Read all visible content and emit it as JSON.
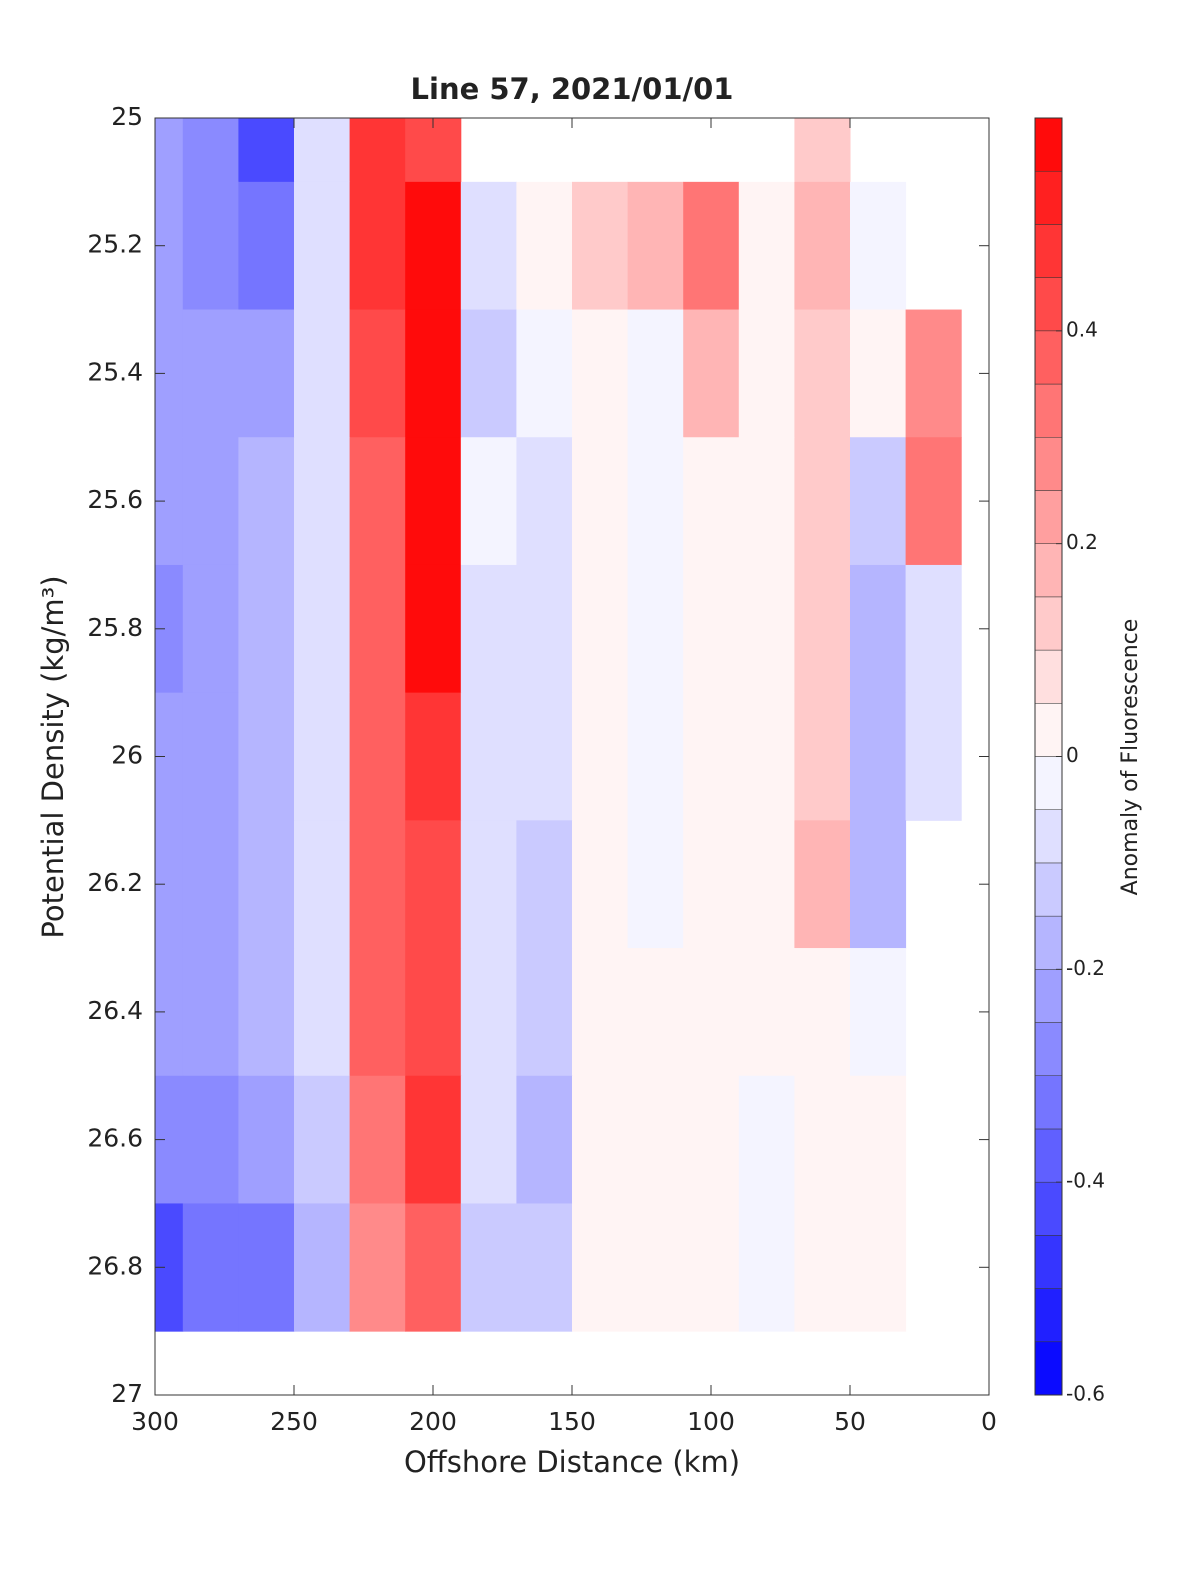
{
  "chart_data": {
    "type": "contour",
    "title": "Line 57, 2021/01/01",
    "xlabel": "Offshore Distance (km)",
    "ylabel": "Potential Density (kg/m³)",
    "colorbar_label": "Anomaly of Fluorescence",
    "x": [
      300,
      280,
      260,
      240,
      220,
      200,
      180,
      160,
      140,
      120,
      100,
      80,
      60,
      40,
      20,
      0
    ],
    "y": [
      25,
      25.2,
      25.4,
      25.6,
      25.8,
      26,
      26.2,
      26.4,
      26.6,
      26.8
    ],
    "z": [
      [
        -0.25,
        -0.3,
        -0.4,
        -0.1,
        0.45,
        0.4,
        null,
        null,
        null,
        null,
        null,
        null,
        0.1,
        null,
        null,
        null
      ],
      [
        -0.25,
        -0.3,
        -0.35,
        -0.1,
        0.45,
        0.55,
        -0.1,
        0.02,
        0.1,
        0.15,
        0.3,
        0,
        0.15,
        -0.05,
        null,
        null
      ],
      [
        -0.25,
        -0.25,
        -0.25,
        -0.1,
        0.4,
        0.6,
        -0.15,
        -0.05,
        0,
        -0.05,
        0.15,
        0,
        0.1,
        0,
        0.25,
        null
      ],
      [
        -0.25,
        -0.25,
        -0.2,
        -0.1,
        0.35,
        0.6,
        -0.05,
        -0.1,
        0,
        -0.05,
        0,
        0,
        0.1,
        -0.15,
        0.3,
        null
      ],
      [
        -0.3,
        -0.25,
        -0.2,
        -0.1,
        0.35,
        0.55,
        -0.1,
        -0.1,
        0,
        -0.05,
        0,
        0,
        0.1,
        -0.2,
        -0.1,
        null
      ],
      [
        -0.25,
        -0.25,
        -0.2,
        -0.1,
        0.35,
        0.45,
        -0.1,
        -0.1,
        0,
        -0.05,
        0,
        0,
        0.1,
        -0.2,
        -0.1,
        null
      ],
      [
        -0.25,
        -0.25,
        -0.2,
        -0.1,
        0.35,
        0.4,
        -0.1,
        -0.15,
        0,
        -0.05,
        0,
        0,
        0.15,
        -0.2,
        null,
        null
      ],
      [
        -0.25,
        -0.25,
        -0.2,
        -0.1,
        0.35,
        0.4,
        -0.1,
        -0.15,
        0,
        0,
        0,
        0,
        0,
        -0.05,
        null,
        null
      ],
      [
        -0.3,
        -0.3,
        -0.25,
        -0.15,
        0.3,
        0.45,
        -0.1,
        -0.2,
        0,
        0,
        0,
        -0.05,
        0,
        0,
        null,
        null
      ],
      [
        -0.4,
        -0.35,
        -0.35,
        -0.2,
        0.25,
        0.35,
        -0.15,
        -0.15,
        0,
        0,
        0,
        -0.05,
        0,
        0,
        null,
        null
      ]
    ],
    "xlim": [
      300,
      0
    ],
    "ylim": [
      25,
      27
    ],
    "xticks": [
      300,
      250,
      200,
      150,
      100,
      50,
      0
    ],
    "yticks": [
      25,
      25.2,
      25.4,
      25.6,
      25.8,
      26,
      26.2,
      26.4,
      26.6,
      26.8,
      27
    ],
    "clim": [
      -0.6,
      0.6
    ],
    "cticks": [
      -0.6,
      -0.4,
      -0.2,
      0,
      0.2,
      0.4
    ],
    "levels": 24,
    "colormap": [
      "#0000ff",
      "#ffffff",
      "#ff0000"
    ]
  }
}
